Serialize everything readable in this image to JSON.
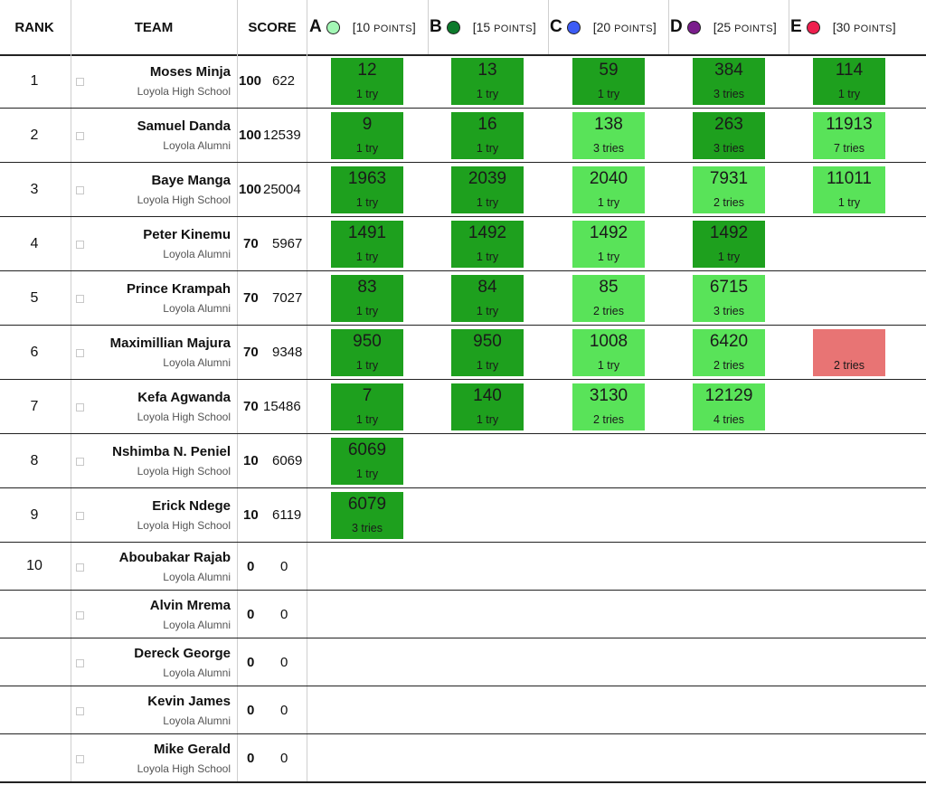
{
  "header": {
    "rank": "RANK",
    "team": "TEAM",
    "score": "SCORE"
  },
  "problems": [
    {
      "letter": "A",
      "points_num": "[10",
      "points_word": "POINTS",
      "close": "]",
      "color": "#a3f7b5"
    },
    {
      "letter": "B",
      "points_num": "[15",
      "points_word": "POINTS",
      "close": "]",
      "color": "#0d7a2c"
    },
    {
      "letter": "C",
      "points_num": "[20",
      "points_word": "POINTS",
      "close": "]",
      "color": "#3d5cf5"
    },
    {
      "letter": "D",
      "points_num": "[25",
      "points_word": "POINTS",
      "close": "]",
      "color": "#7a1e8c"
    },
    {
      "letter": "E",
      "points_num": "[30",
      "points_word": "POINTS",
      "close": "]",
      "color": "#ee1f4e"
    }
  ],
  "colors": {
    "first_solve": "#1ea01e",
    "solved": "#59e359",
    "failed": "#e87474"
  },
  "rows": [
    {
      "rank": "1",
      "name": "Moses Minja",
      "inst": "Loyola High School",
      "solved": "100",
      "penalty": "622",
      "cells": [
        {
          "time": "12",
          "tries": "1 try",
          "state": "first"
        },
        {
          "time": "13",
          "tries": "1 try",
          "state": "first"
        },
        {
          "time": "59",
          "tries": "1 try",
          "state": "first"
        },
        {
          "time": "384",
          "tries": "3 tries",
          "state": "first"
        },
        {
          "time": "114",
          "tries": "1 try",
          "state": "first"
        }
      ]
    },
    {
      "rank": "2",
      "name": "Samuel Danda",
      "inst": "Loyola Alumni",
      "solved": "100",
      "penalty": "12539",
      "cells": [
        {
          "time": "9",
          "tries": "1 try",
          "state": "first"
        },
        {
          "time": "16",
          "tries": "1 try",
          "state": "first"
        },
        {
          "time": "138",
          "tries": "3 tries",
          "state": "solved"
        },
        {
          "time": "263",
          "tries": "3 tries",
          "state": "first"
        },
        {
          "time": "11913",
          "tries": "7 tries",
          "state": "solved"
        }
      ]
    },
    {
      "rank": "3",
      "name": "Baye Manga",
      "inst": "Loyola High School",
      "solved": "100",
      "penalty": "25004",
      "cells": [
        {
          "time": "1963",
          "tries": "1 try",
          "state": "first"
        },
        {
          "time": "2039",
          "tries": "1 try",
          "state": "first"
        },
        {
          "time": "2040",
          "tries": "1 try",
          "state": "solved"
        },
        {
          "time": "7931",
          "tries": "2 tries",
          "state": "solved"
        },
        {
          "time": "11011",
          "tries": "1 try",
          "state": "solved"
        }
      ]
    },
    {
      "rank": "4",
      "name": "Peter Kinemu",
      "inst": "Loyola Alumni",
      "solved": "70",
      "penalty": "5967",
      "cells": [
        {
          "time": "1491",
          "tries": "1 try",
          "state": "first"
        },
        {
          "time": "1492",
          "tries": "1 try",
          "state": "first"
        },
        {
          "time": "1492",
          "tries": "1 try",
          "state": "solved"
        },
        {
          "time": "1492",
          "tries": "1 try",
          "state": "first"
        },
        null
      ]
    },
    {
      "rank": "5",
      "name": "Prince Krampah",
      "inst": "Loyola Alumni",
      "solved": "70",
      "penalty": "7027",
      "cells": [
        {
          "time": "83",
          "tries": "1 try",
          "state": "first"
        },
        {
          "time": "84",
          "tries": "1 try",
          "state": "first"
        },
        {
          "time": "85",
          "tries": "2 tries",
          "state": "solved"
        },
        {
          "time": "6715",
          "tries": "3 tries",
          "state": "solved"
        },
        null
      ]
    },
    {
      "rank": "6",
      "name": "Maximillian Majura",
      "inst": "Loyola Alumni",
      "solved": "70",
      "penalty": "9348",
      "cells": [
        {
          "time": "950",
          "tries": "1 try",
          "state": "first"
        },
        {
          "time": "950",
          "tries": "1 try",
          "state": "first"
        },
        {
          "time": "1008",
          "tries": "1 try",
          "state": "solved"
        },
        {
          "time": "6420",
          "tries": "2 tries",
          "state": "solved"
        },
        {
          "time": "",
          "tries": "2 tries",
          "state": "fail"
        }
      ]
    },
    {
      "rank": "7",
      "name": "Kefa Agwanda",
      "inst": "Loyola High School",
      "solved": "70",
      "penalty": "15486",
      "cells": [
        {
          "time": "7",
          "tries": "1 try",
          "state": "first"
        },
        {
          "time": "140",
          "tries": "1 try",
          "state": "first"
        },
        {
          "time": "3130",
          "tries": "2 tries",
          "state": "solved"
        },
        {
          "time": "12129",
          "tries": "4 tries",
          "state": "solved"
        },
        null
      ]
    },
    {
      "rank": "8",
      "name": "Nshimba N. Peniel",
      "inst": "Loyola High School",
      "solved": "10",
      "penalty": "6069",
      "cells": [
        {
          "time": "6069",
          "tries": "1 try",
          "state": "first"
        },
        null,
        null,
        null,
        null
      ]
    },
    {
      "rank": "9",
      "name": "Erick Ndege",
      "inst": "Loyola High School",
      "solved": "10",
      "penalty": "6119",
      "cells": [
        {
          "time": "6079",
          "tries": "3 tries",
          "state": "first"
        },
        null,
        null,
        null,
        null
      ]
    },
    {
      "rank": "10",
      "name": "Aboubakar Rajab",
      "inst": "Loyola Alumni",
      "solved": "0",
      "penalty": "0",
      "cells": [
        null,
        null,
        null,
        null,
        null
      ]
    },
    {
      "rank": "",
      "name": "Alvin Mrema",
      "inst": "Loyola Alumni",
      "solved": "0",
      "penalty": "0",
      "cells": [
        null,
        null,
        null,
        null,
        null
      ]
    },
    {
      "rank": "",
      "name": "Dereck George",
      "inst": "Loyola Alumni",
      "solved": "0",
      "penalty": "0",
      "cells": [
        null,
        null,
        null,
        null,
        null
      ]
    },
    {
      "rank": "",
      "name": "Kevin James",
      "inst": "Loyola Alumni",
      "solved": "0",
      "penalty": "0",
      "cells": [
        null,
        null,
        null,
        null,
        null
      ]
    },
    {
      "rank": "",
      "name": "Mike Gerald",
      "inst": "Loyola High School",
      "solved": "0",
      "penalty": "0",
      "cells": [
        null,
        null,
        null,
        null,
        null
      ]
    }
  ]
}
